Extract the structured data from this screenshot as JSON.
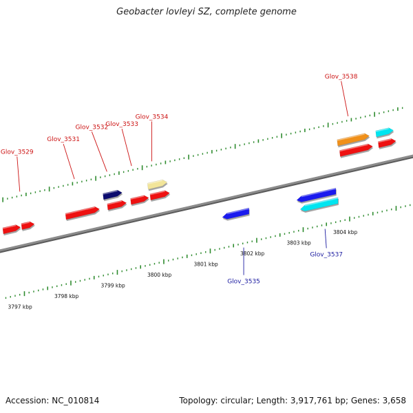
{
  "title": "Geobacter lovleyi SZ, complete genome",
  "footer": {
    "accession": "Accession: NC_010814",
    "summary": "Topology: circular; Length: 3,917,761 bp; Genes: 3,658"
  },
  "colors": {
    "backbone": "#8c8c8c",
    "ticks": "#2e8b2e",
    "label_forward": "#cc1111",
    "label_reverse": "#1a1aa0"
  },
  "scale": {
    "labels": [
      "3797 kbp",
      "3798 kbp",
      "3799 kbp",
      "3800 kbp",
      "3801 kbp",
      "3802 kbp",
      "3803 kbp",
      "3804 kbp"
    ]
  },
  "genes": [
    {
      "name": "",
      "strand": "+",
      "start": 3796.85,
      "end": 3797.22,
      "color": "#ee1111"
    },
    {
      "name": "Glov_3529",
      "strand": "+",
      "start": 3797.25,
      "end": 3797.52,
      "color": "#ee1111"
    },
    {
      "name": "Glov_3531",
      "strand": "+",
      "start": 3798.2,
      "end": 3798.92,
      "color": "#ee1111"
    },
    {
      "name": "",
      "strand": "+",
      "start": 3799.1,
      "end": 3799.5,
      "color": "#ee1111"
    },
    {
      "name": "Glov_3532",
      "strand": "+2",
      "start": 3799.06,
      "end": 3799.46,
      "color": "#0b0b6e"
    },
    {
      "name": "Glov_3533",
      "strand": "+",
      "start": 3799.6,
      "end": 3799.98,
      "color": "#ee1111"
    },
    {
      "name": "",
      "strand": "+",
      "start": 3800.02,
      "end": 3800.43,
      "color": "#ee1111"
    },
    {
      "name": "Glov_3534",
      "strand": "+2",
      "start": 3800.02,
      "end": 3800.43,
      "color": "#f2e59a"
    },
    {
      "name": "Glov_3535",
      "strand": "-",
      "start": 3801.42,
      "end": 3801.98,
      "color": "#1a1aee"
    },
    {
      "name": "",
      "strand": "-",
      "start": 3803.02,
      "end": 3803.85,
      "color": "#1a1aee"
    },
    {
      "name": "Glov_3537",
      "strand": "-2",
      "start": 3803.05,
      "end": 3803.85,
      "color": "#00e5f0"
    },
    {
      "name": "Glov_3538",
      "strand": "+",
      "start": 3804.1,
      "end": 3804.8,
      "color": "#ee1111"
    },
    {
      "name": "",
      "strand": "+2",
      "start": 3804.1,
      "end": 3804.78,
      "color": "#f0901a"
    },
    {
      "name": "",
      "strand": "+2",
      "start": 3804.93,
      "end": 3805.3,
      "color": "#00e5f0"
    },
    {
      "name": "",
      "strand": "+",
      "start": 3804.93,
      "end": 3805.3,
      "color": "#ee1111"
    }
  ]
}
